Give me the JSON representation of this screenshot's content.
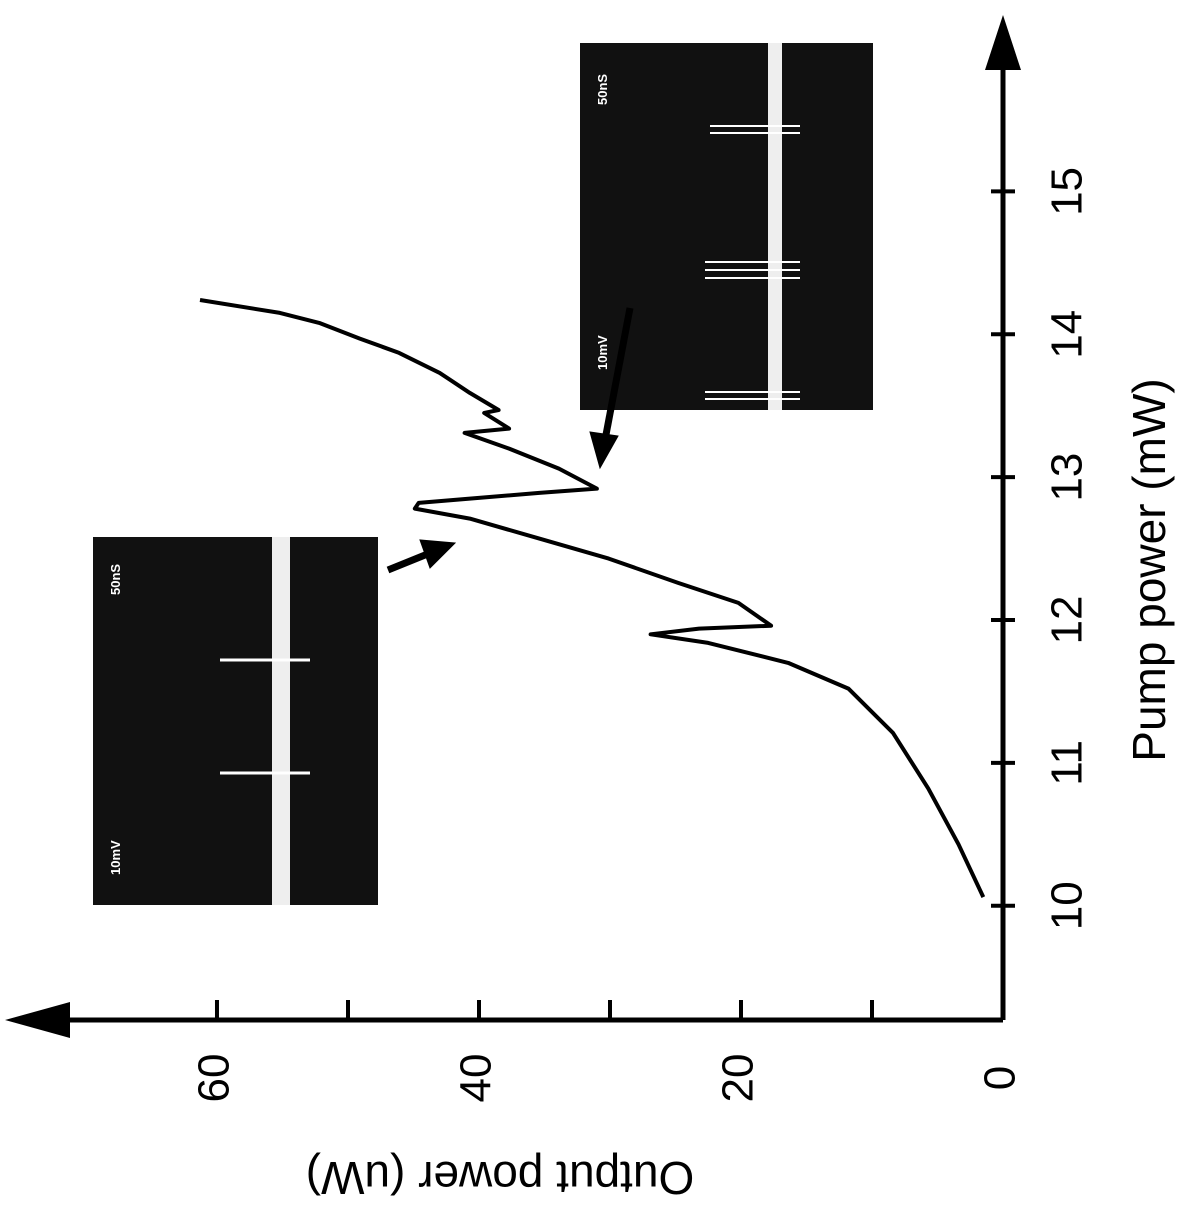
{
  "chart_data": {
    "type": "line",
    "x_label": "Pump power   (mW)",
    "y_label": "Output power   (uW)",
    "x": [
      10.06,
      10.43,
      10.82,
      11.21,
      11.52,
      11.7,
      11.84,
      11.9,
      11.94,
      11.96,
      12.12,
      12.26,
      12.43,
      12.57,
      12.71,
      12.78,
      12.82,
      12.85,
      12.89,
      12.92,
      13.06,
      13.2,
      13.31,
      13.34,
      13.45,
      13.47,
      13.59,
      13.73,
      13.87,
      13.97,
      14.08,
      14.15,
      14.24
    ],
    "series": [
      {
        "color": "#000000",
        "values": [
          1.5,
          3.4,
          5.7,
          8.4,
          11.8,
          16.4,
          22.5,
          26.9,
          23.2,
          17.7,
          20.2,
          24.8,
          30.1,
          35.4,
          40.7,
          44.9,
          44.6,
          40.7,
          35.4,
          31.0,
          33.9,
          37.7,
          41.1,
          37.7,
          39.6,
          38.5,
          40.7,
          43.0,
          46.1,
          49.1,
          52.2,
          55.2,
          61.3
        ]
      }
    ],
    "xlim": [
      9.2,
      16.2
    ],
    "xticks": [
      10,
      11,
      12,
      13,
      14,
      15
    ],
    "ylim": [
      0,
      75.8
    ],
    "yticks": [
      0,
      20,
      40,
      60
    ],
    "yminor_ticks": [
      10,
      30,
      50
    ],
    "insets": [
      {
        "left_label": "10mV",
        "right_label": "50nS"
      },
      {
        "left_label": "10mV",
        "right_label": "50nS"
      }
    ]
  }
}
